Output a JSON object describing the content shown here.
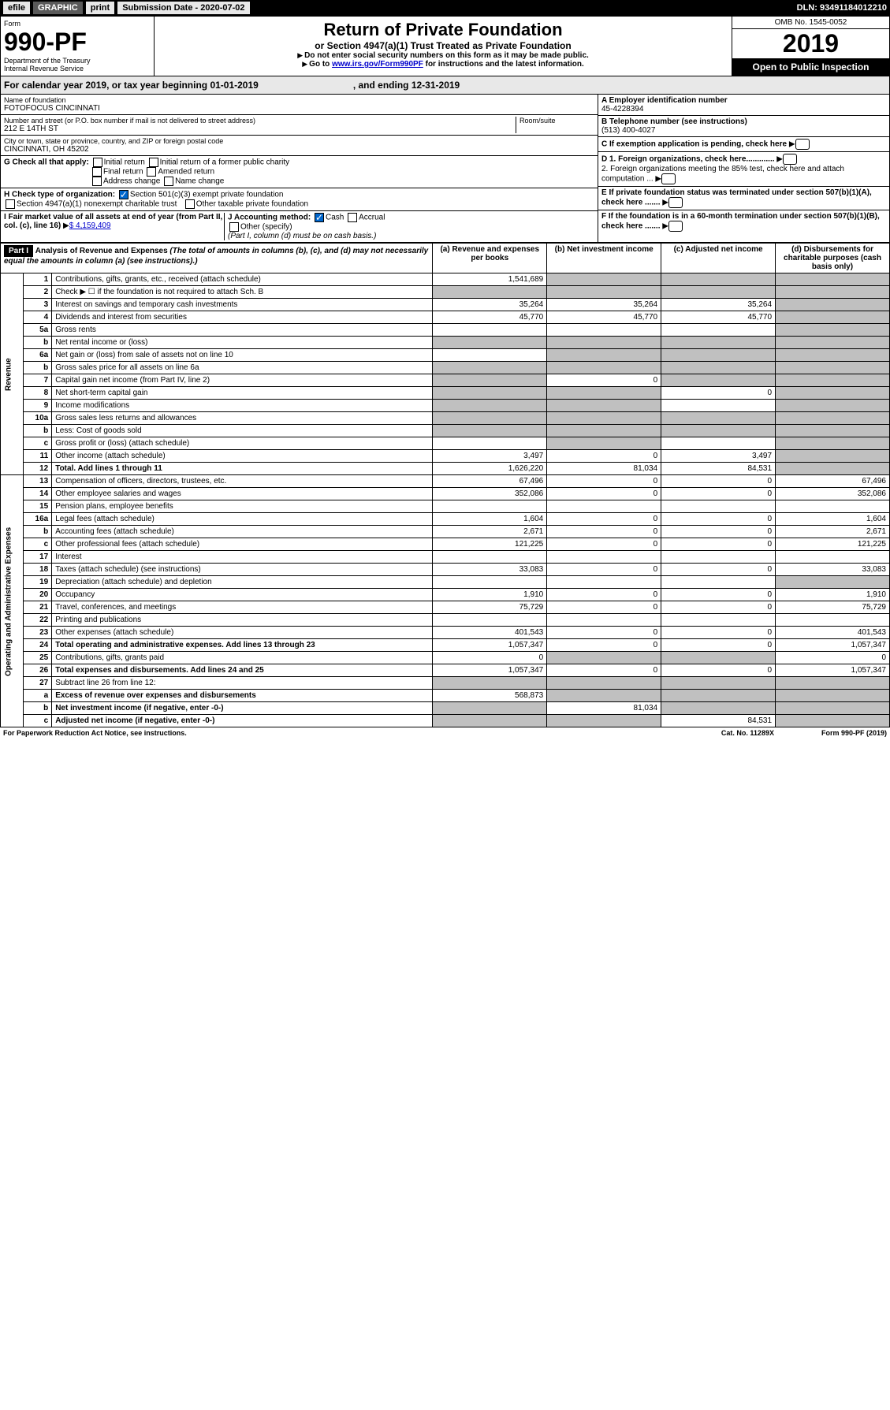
{
  "header": {
    "efile": "efile",
    "graphic": "GRAPHIC",
    "print": "print",
    "subdate_label": "Submission Date - 2020-07-02",
    "dln": "DLN: 93491184012210"
  },
  "formhead": {
    "form": "Form",
    "number": "990-PF",
    "dept": "Department of the Treasury",
    "irs": "Internal Revenue Service",
    "title": "Return of Private Foundation",
    "subtitle": "or Section 4947(a)(1) Trust Treated as Private Foundation",
    "instr1": "Do not enter social security numbers on this form as it may be made public.",
    "instr2": "Go to ",
    "instr2_link": "www.irs.gov/Form990PF",
    "instr2_tail": " for instructions and the latest information.",
    "omb": "OMB No. 1545-0052",
    "year": "2019",
    "open": "Open to Public Inspection"
  },
  "cal": {
    "text": "For calendar year 2019, or tax year beginning 01-01-2019",
    "ending": ", and ending 12-31-2019"
  },
  "info": {
    "name_label": "Name of foundation",
    "name": "FOTOFOCUS CINCINNATI",
    "addr_label": "Number and street (or P.O. box number if mail is not delivered to street address)",
    "addr": "212 E 14TH ST",
    "room_label": "Room/suite",
    "city_label": "City or town, state or province, country, and ZIP or foreign postal code",
    "city": "CINCINNATI, OH  45202",
    "ein_label": "A Employer identification number",
    "ein": "45-4228394",
    "tel_label": "B Telephone number (see instructions)",
    "tel": "(513) 400-4027",
    "c_label": "C If exemption application is pending, check here",
    "d1": "D 1. Foreign organizations, check here.............",
    "d2": "2. Foreign organizations meeting the 85% test, check here and attach computation ...",
    "e": "E If private foundation status was terminated under section 507(b)(1)(A), check here .......",
    "f": "F If the foundation is in a 60-month termination under section 507(b)(1)(B), check here .......",
    "g_label": "G Check all that apply:",
    "g_opts": [
      "Initial return",
      "Initial return of a former public charity",
      "Final return",
      "Amended return",
      "Address change",
      "Name change"
    ],
    "h_label": "H Check type of organization:",
    "h_opt1": "Section 501(c)(3) exempt private foundation",
    "h_opt2": "Section 4947(a)(1) nonexempt charitable trust",
    "h_opt3": "Other taxable private foundation",
    "i_label": "I Fair market value of all assets at end of year (from Part II, col. (c), line 16)",
    "i_val": "$  4,159,409",
    "j_label": "J Accounting method:",
    "j_cash": "Cash",
    "j_accrual": "Accrual",
    "j_other": "Other (specify)",
    "j_note": "(Part I, column (d) must be on cash basis.)"
  },
  "part1": {
    "label": "Part I",
    "title": "Analysis of Revenue and Expenses",
    "sub": " (The total of amounts in columns (b), (c), and (d) may not necessarily equal the amounts in column (a) (see instructions).)",
    "col_a": "(a) Revenue and expenses per books",
    "col_b": "(b) Net investment income",
    "col_c": "(c) Adjusted net income",
    "col_d": "(d) Disbursements for charitable purposes (cash basis only)"
  },
  "revenue_label": "Revenue",
  "expenses_label": "Operating and Administrative Expenses",
  "rows": [
    {
      "n": "1",
      "d": "Contributions, gifts, grants, etc., received (attach schedule)",
      "a": "1,541,689",
      "b": "",
      "c": "",
      "dd": "",
      "gray": [
        "b",
        "c",
        "dd"
      ]
    },
    {
      "n": "2",
      "d": "Check ▶ ☐ if the foundation is not required to attach Sch. B",
      "a": "",
      "b": "",
      "c": "",
      "dd": "",
      "gray": [
        "a",
        "b",
        "c",
        "dd"
      ]
    },
    {
      "n": "3",
      "d": "Interest on savings and temporary cash investments",
      "a": "35,264",
      "b": "35,264",
      "c": "35,264",
      "dd": "",
      "gray": [
        "dd"
      ]
    },
    {
      "n": "4",
      "d": "Dividends and interest from securities",
      "a": "45,770",
      "b": "45,770",
      "c": "45,770",
      "dd": "",
      "gray": [
        "dd"
      ]
    },
    {
      "n": "5a",
      "d": "Gross rents",
      "a": "",
      "b": "",
      "c": "",
      "dd": "",
      "gray": [
        "dd"
      ]
    },
    {
      "n": "b",
      "d": "Net rental income or (loss)",
      "a": "",
      "b": "",
      "c": "",
      "dd": "",
      "gray": [
        "a",
        "b",
        "c",
        "dd"
      ]
    },
    {
      "n": "6a",
      "d": "Net gain or (loss) from sale of assets not on line 10",
      "a": "",
      "b": "",
      "c": "",
      "dd": "",
      "gray": [
        "b",
        "c",
        "dd"
      ]
    },
    {
      "n": "b",
      "d": "Gross sales price for all assets on line 6a",
      "a": "",
      "b": "",
      "c": "",
      "dd": "",
      "gray": [
        "a",
        "b",
        "c",
        "dd"
      ]
    },
    {
      "n": "7",
      "d": "Capital gain net income (from Part IV, line 2)",
      "a": "",
      "b": "0",
      "c": "",
      "dd": "",
      "gray": [
        "a",
        "c",
        "dd"
      ]
    },
    {
      "n": "8",
      "d": "Net short-term capital gain",
      "a": "",
      "b": "",
      "c": "0",
      "dd": "",
      "gray": [
        "a",
        "b",
        "dd"
      ]
    },
    {
      "n": "9",
      "d": "Income modifications",
      "a": "",
      "b": "",
      "c": "",
      "dd": "",
      "gray": [
        "a",
        "b",
        "dd"
      ]
    },
    {
      "n": "10a",
      "d": "Gross sales less returns and allowances",
      "a": "",
      "b": "",
      "c": "",
      "dd": "",
      "gray": [
        "a",
        "b",
        "c",
        "dd"
      ]
    },
    {
      "n": "b",
      "d": "Less: Cost of goods sold",
      "a": "",
      "b": "",
      "c": "",
      "dd": "",
      "gray": [
        "a",
        "b",
        "c",
        "dd"
      ]
    },
    {
      "n": "c",
      "d": "Gross profit or (loss) (attach schedule)",
      "a": "",
      "b": "",
      "c": "",
      "dd": "",
      "gray": [
        "b",
        "dd"
      ]
    },
    {
      "n": "11",
      "d": "Other income (attach schedule)",
      "a": "3,497",
      "b": "0",
      "c": "3,497",
      "dd": "",
      "gray": [
        "dd"
      ]
    },
    {
      "n": "12",
      "d": "Total. Add lines 1 through 11",
      "a": "1,626,220",
      "b": "81,034",
      "c": "84,531",
      "dd": "",
      "gray": [
        "dd"
      ],
      "bold": true
    },
    {
      "n": "13",
      "d": "Compensation of officers, directors, trustees, etc.",
      "a": "67,496",
      "b": "0",
      "c": "0",
      "dd": "67,496"
    },
    {
      "n": "14",
      "d": "Other employee salaries and wages",
      "a": "352,086",
      "b": "0",
      "c": "0",
      "dd": "352,086"
    },
    {
      "n": "15",
      "d": "Pension plans, employee benefits",
      "a": "",
      "b": "",
      "c": "",
      "dd": ""
    },
    {
      "n": "16a",
      "d": "Legal fees (attach schedule)",
      "a": "1,604",
      "b": "0",
      "c": "0",
      "dd": "1,604"
    },
    {
      "n": "b",
      "d": "Accounting fees (attach schedule)",
      "a": "2,671",
      "b": "0",
      "c": "0",
      "dd": "2,671"
    },
    {
      "n": "c",
      "d": "Other professional fees (attach schedule)",
      "a": "121,225",
      "b": "0",
      "c": "0",
      "dd": "121,225"
    },
    {
      "n": "17",
      "d": "Interest",
      "a": "",
      "b": "",
      "c": "",
      "dd": ""
    },
    {
      "n": "18",
      "d": "Taxes (attach schedule) (see instructions)",
      "a": "33,083",
      "b": "0",
      "c": "0",
      "dd": "33,083"
    },
    {
      "n": "19",
      "d": "Depreciation (attach schedule) and depletion",
      "a": "",
      "b": "",
      "c": "",
      "dd": "",
      "gray": [
        "dd"
      ]
    },
    {
      "n": "20",
      "d": "Occupancy",
      "a": "1,910",
      "b": "0",
      "c": "0",
      "dd": "1,910"
    },
    {
      "n": "21",
      "d": "Travel, conferences, and meetings",
      "a": "75,729",
      "b": "0",
      "c": "0",
      "dd": "75,729"
    },
    {
      "n": "22",
      "d": "Printing and publications",
      "a": "",
      "b": "",
      "c": "",
      "dd": ""
    },
    {
      "n": "23",
      "d": "Other expenses (attach schedule)",
      "a": "401,543",
      "b": "0",
      "c": "0",
      "dd": "401,543"
    },
    {
      "n": "24",
      "d": "Total operating and administrative expenses. Add lines 13 through 23",
      "a": "1,057,347",
      "b": "0",
      "c": "0",
      "dd": "1,057,347",
      "bold": true
    },
    {
      "n": "25",
      "d": "Contributions, gifts, grants paid",
      "a": "0",
      "b": "",
      "c": "",
      "dd": "0",
      "gray": [
        "b",
        "c"
      ]
    },
    {
      "n": "26",
      "d": "Total expenses and disbursements. Add lines 24 and 25",
      "a": "1,057,347",
      "b": "0",
      "c": "0",
      "dd": "1,057,347",
      "bold": true
    },
    {
      "n": "27",
      "d": "Subtract line 26 from line 12:",
      "a": "",
      "b": "",
      "c": "",
      "dd": "",
      "gray": [
        "a",
        "b",
        "c",
        "dd"
      ]
    },
    {
      "n": "a",
      "d": "Excess of revenue over expenses and disbursements",
      "a": "568,873",
      "b": "",
      "c": "",
      "dd": "",
      "gray": [
        "b",
        "c",
        "dd"
      ],
      "bold": true
    },
    {
      "n": "b",
      "d": "Net investment income (if negative, enter -0-)",
      "a": "",
      "b": "81,034",
      "c": "",
      "dd": "",
      "gray": [
        "a",
        "c",
        "dd"
      ],
      "bold": true
    },
    {
      "n": "c",
      "d": "Adjusted net income (if negative, enter -0-)",
      "a": "",
      "b": "",
      "c": "84,531",
      "dd": "",
      "gray": [
        "a",
        "b",
        "dd"
      ],
      "bold": true
    }
  ],
  "footer": {
    "left": "For Paperwork Reduction Act Notice, see instructions.",
    "mid": "Cat. No. 11289X",
    "right": "Form 990-PF (2019)"
  }
}
